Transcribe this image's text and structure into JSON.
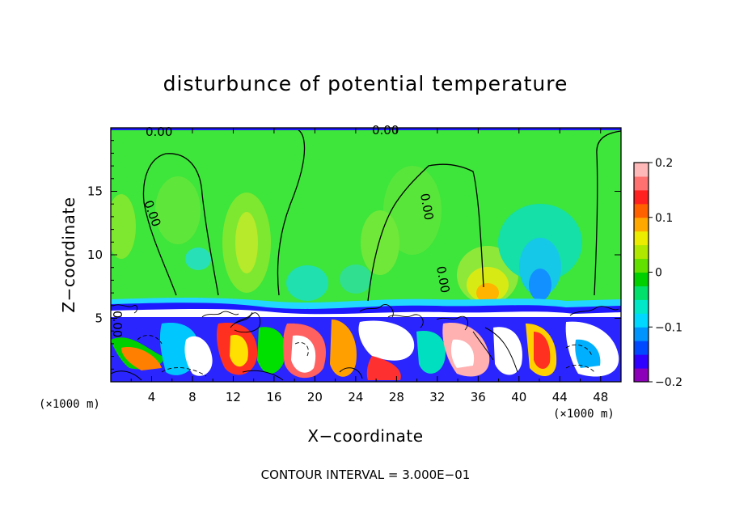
{
  "chart_data": {
    "type": "heatmap",
    "title": "disturbunce of potential temperature",
    "xlabel": "X−coordinate",
    "ylabel": "Z−coordinate",
    "x_unit": "(×1000 m)",
    "z_unit": "(×1000 m)",
    "xlim": [
      0,
      50
    ],
    "ylim": [
      0,
      20
    ],
    "x_ticks": [
      "4",
      "8",
      "12",
      "16",
      "20",
      "24",
      "28",
      "32",
      "36",
      "40",
      "44",
      "48"
    ],
    "y_ticks": [
      "5",
      "10",
      "15"
    ],
    "contour_interval": "CONTOUR INTERVAL = 3.000E−01",
    "contour_labels": [
      "0.00",
      "0.00",
      "0.00",
      "0.00",
      "0.00",
      "0.00"
    ],
    "colorbar": {
      "ticks": [
        "0.2",
        "0.1",
        "0",
        "−0.1",
        "−0.2"
      ],
      "range": [
        -0.2,
        0.2
      ],
      "colors": [
        "#8b00b8",
        "#2f00ff",
        "#0048ff",
        "#0094ff",
        "#00d8ff",
        "#00e8c8",
        "#00e06a",
        "#00d000",
        "#62e000",
        "#b0e800",
        "#ecec00",
        "#ffa800",
        "#ff6000",
        "#ff2020",
        "#ff7070",
        "#ffb8b8"
      ]
    },
    "colors": {
      "background_field": "#3ee53b",
      "upper_band": "#1e18ff",
      "lower_field": "#2a25ff"
    }
  }
}
